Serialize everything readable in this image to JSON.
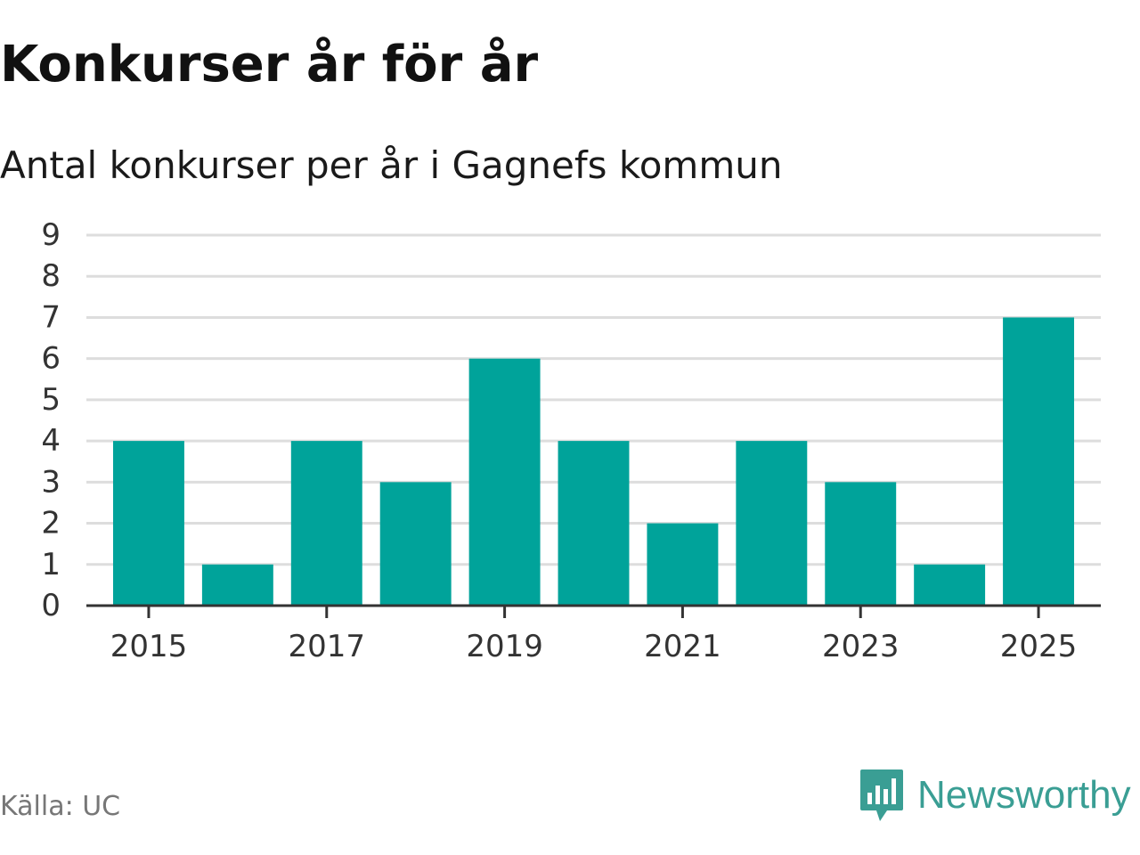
{
  "header": {
    "title": "Konkurser år för år",
    "subtitle": "Antal konkurser per år i Gagnefs kommun"
  },
  "footer": {
    "source": "Källa: UC",
    "brand": "Newsworthy"
  },
  "colors": {
    "bar": "#00a39a",
    "grid": "#dddddd",
    "axis": "#333333",
    "brand": "#3a9e94"
  },
  "chart_data": {
    "type": "bar",
    "title": "Konkurser år för år",
    "subtitle": "Antal konkurser per år i Gagnefs kommun",
    "xlabel": "",
    "ylabel": "",
    "categories": [
      "2015",
      "2016",
      "2017",
      "2018",
      "2019",
      "2020",
      "2021",
      "2022",
      "2023",
      "2024",
      "2025"
    ],
    "x_tick_labels": [
      "2015",
      "2017",
      "2019",
      "2021",
      "2023",
      "2025"
    ],
    "values": [
      4,
      1,
      4,
      3,
      6,
      4,
      2,
      4,
      3,
      1,
      7
    ],
    "y_ticks": [
      0,
      1,
      2,
      3,
      4,
      5,
      6,
      7,
      8,
      9
    ],
    "ylim": [
      0,
      9
    ],
    "grid": true,
    "legend": "none",
    "source": "Källa: UC"
  }
}
